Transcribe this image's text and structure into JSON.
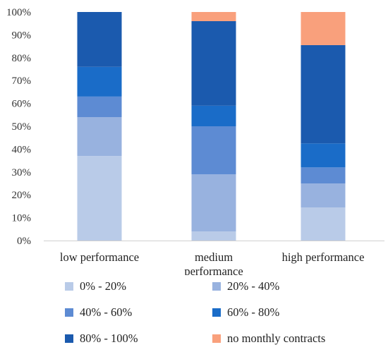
{
  "chart_data": {
    "type": "bar",
    "stacked": true,
    "categories": [
      "low performance",
      "medium performance",
      "high performance"
    ],
    "category_lines": [
      [
        "low performance"
      ],
      [
        "medium",
        "performance"
      ],
      [
        "high performance"
      ]
    ],
    "yticks": [
      "0%",
      "10%",
      "20%",
      "30%",
      "40%",
      "50%",
      "60%",
      "70%",
      "80%",
      "90%",
      "100%"
    ],
    "ylim": [
      0,
      100
    ],
    "series": [
      {
        "name": "0% - 20%",
        "color": "#B9CBE8",
        "values": [
          37,
          4,
          14.5
        ]
      },
      {
        "name": "20% - 40%",
        "color": "#98B2DF",
        "values": [
          17,
          25,
          10.5
        ]
      },
      {
        "name": "40% - 60%",
        "color": "#5D8BD3",
        "values": [
          9,
          21,
          7
        ]
      },
      {
        "name": "60% - 80%",
        "color": "#1A6CC8",
        "values": [
          13,
          9,
          10.5
        ]
      },
      {
        "name": "80% - 100%",
        "color": "#1B5AAE",
        "values": [
          24,
          37,
          43
        ]
      },
      {
        "name": "no monthly contracts",
        "color": "#F9A07C",
        "values": [
          0,
          4,
          14.5
        ]
      }
    ],
    "legend_position": "bottom",
    "grid": false
  }
}
